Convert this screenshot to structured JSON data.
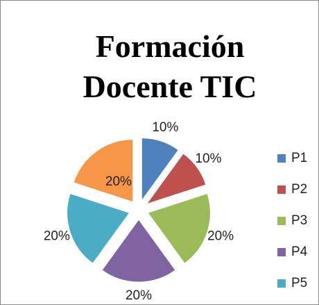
{
  "chart_data": {
    "type": "pie",
    "title": "Formación Docente TIC",
    "categories": [
      "P1",
      "P2",
      "P3",
      "P4",
      "P5",
      null
    ],
    "values": [
      10,
      10,
      20,
      20,
      20,
      20
    ],
    "value_labels": [
      "10%",
      "10%",
      "20%",
      "20%",
      "20%",
      "20%"
    ],
    "colors": [
      "#4f81bd",
      "#c0504d",
      "#9bbb59",
      "#8064a2",
      "#4bacc6",
      "#f79646"
    ],
    "legend": "right"
  }
}
